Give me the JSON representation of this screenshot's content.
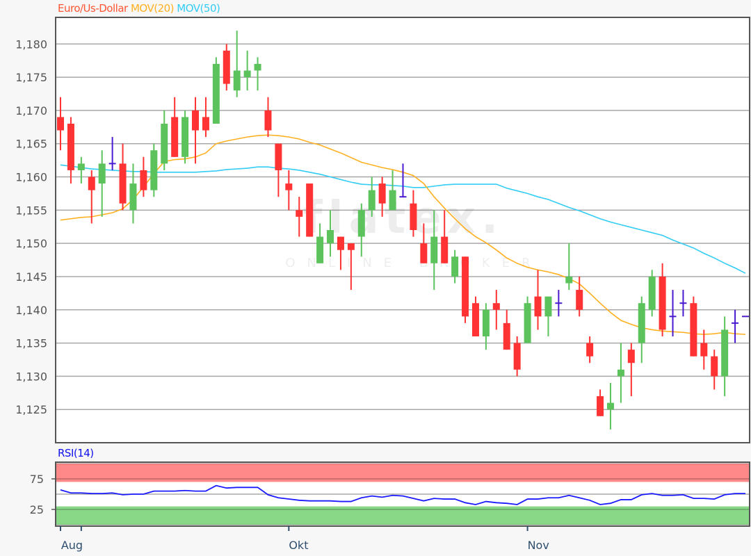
{
  "header": {
    "instrument": "Euro/Us-Dollar",
    "ma20_label": "MOV(20)",
    "ma50_label": "MOV(50)",
    "rsi_label": "RSI(14)",
    "watermark_main": "flatex.",
    "watermark_sub": "ONLINE BROKER"
  },
  "colors": {
    "instrument": "#ff5533",
    "up": "#5cc35c",
    "down": "#ff3333",
    "doji": "#4a1ad0",
    "ma20": "#ffb020",
    "ma50": "#33ccf5",
    "rsi": "#1a1aff",
    "rsi_overbought": "#ff8888",
    "rsi_oversold": "#88d888"
  },
  "chart_data": [
    {
      "type": "candlestick",
      "ylim": [
        1.12,
        1.184
      ],
      "yticks": [
        1.18,
        1.175,
        1.17,
        1.165,
        1.16,
        1.155,
        1.15,
        1.145,
        1.14,
        1.135,
        1.13,
        1.125
      ],
      "ytick_labels": [
        "1,180",
        "1,175",
        "1,170",
        "1,165",
        "1,160",
        "1,155",
        "1,150",
        "1,145",
        "1,140",
        "1,135",
        "1,130",
        "1,125"
      ],
      "grid": true,
      "xticks": [
        {
          "index": 0,
          "label": ""
        },
        {
          "index": 2,
          "label": "Aug"
        },
        {
          "index": 22,
          "label": "Okt"
        },
        {
          "index": 45,
          "label": "Nov"
        }
      ],
      "ohlc": [
        [
          1.169,
          1.172,
          1.164,
          1.167
        ],
        [
          1.168,
          1.169,
          1.159,
          1.161
        ],
        [
          1.161,
          1.163,
          1.159,
          1.162
        ],
        [
          1.16,
          1.161,
          1.153,
          1.158
        ],
        [
          1.159,
          1.164,
          1.154,
          1.162
        ],
        [
          1.162,
          1.166,
          1.161,
          1.162
        ],
        [
          1.162,
          1.165,
          1.155,
          1.156
        ],
        [
          1.155,
          1.162,
          1.153,
          1.159
        ],
        [
          1.161,
          1.163,
          1.157,
          1.158
        ],
        [
          1.158,
          1.165,
          1.157,
          1.164
        ],
        [
          1.162,
          1.17,
          1.161,
          1.168
        ],
        [
          1.169,
          1.172,
          1.163,
          1.163
        ],
        [
          1.163,
          1.17,
          1.162,
          1.169
        ],
        [
          1.17,
          1.172,
          1.162,
          1.167
        ],
        [
          1.169,
          1.172,
          1.166,
          1.167
        ],
        [
          1.168,
          1.178,
          1.168,
          1.177
        ],
        [
          1.179,
          1.18,
          1.173,
          1.174
        ],
        [
          1.173,
          1.182,
          1.172,
          1.176
        ],
        [
          1.175,
          1.179,
          1.173,
          1.176
        ],
        [
          1.176,
          1.178,
          1.173,
          1.177
        ],
        [
          1.17,
          1.172,
          1.166,
          1.167
        ],
        [
          1.165,
          1.165,
          1.157,
          1.161
        ],
        [
          1.159,
          1.161,
          1.155,
          1.158
        ],
        [
          1.155,
          1.157,
          1.151,
          1.154
        ],
        [
          1.159,
          1.159,
          1.151,
          1.151
        ],
        [
          1.147,
          1.153,
          1.147,
          1.151
        ],
        [
          1.15,
          1.155,
          1.148,
          1.152
        ],
        [
          1.151,
          1.151,
          1.146,
          1.149
        ],
        [
          1.15,
          1.15,
          1.143,
          1.149
        ],
        [
          1.151,
          1.156,
          1.148,
          1.155
        ],
        [
          1.155,
          1.16,
          1.154,
          1.158
        ],
        [
          1.159,
          1.16,
          1.154,
          1.156
        ],
        [
          1.155,
          1.161,
          1.155,
          1.158
        ],
        [
          1.157,
          1.162,
          1.157,
          1.157
        ],
        [
          1.156,
          1.158,
          1.151,
          1.152
        ],
        [
          1.15,
          1.153,
          1.147,
          1.147
        ],
        [
          1.147,
          1.155,
          1.143,
          1.151
        ],
        [
          1.151,
          1.155,
          1.147,
          1.147
        ],
        [
          1.145,
          1.149,
          1.144,
          1.148
        ],
        [
          1.148,
          1.148,
          1.138,
          1.139
        ],
        [
          1.141,
          1.142,
          1.136,
          1.136
        ],
        [
          1.136,
          1.141,
          1.134,
          1.14
        ],
        [
          1.141,
          1.143,
          1.137,
          1.14
        ],
        [
          1.138,
          1.14,
          1.134,
          1.134
        ],
        [
          1.135,
          1.136,
          1.13,
          1.131
        ],
        [
          1.135,
          1.142,
          1.135,
          1.141
        ],
        [
          1.142,
          1.146,
          1.137,
          1.139
        ],
        [
          1.139,
          1.142,
          1.136,
          1.142
        ],
        [
          1.141,
          1.143,
          1.139,
          1.141
        ],
        [
          1.144,
          1.15,
          1.143,
          1.145
        ],
        [
          1.143,
          1.145,
          1.139,
          1.14
        ],
        [
          1.135,
          1.136,
          1.132,
          1.133
        ],
        [
          1.127,
          1.128,
          1.124,
          1.124
        ],
        [
          1.125,
          1.129,
          1.122,
          1.126
        ],
        [
          1.13,
          1.135,
          1.126,
          1.131
        ],
        [
          1.134,
          1.135,
          1.127,
          1.132
        ],
        [
          1.135,
          1.142,
          1.132,
          1.141
        ],
        [
          1.14,
          1.146,
          1.139,
          1.145
        ],
        [
          1.145,
          1.147,
          1.136,
          1.137
        ],
        [
          1.139,
          1.143,
          1.136,
          1.139
        ],
        [
          1.141,
          1.143,
          1.139,
          1.141
        ],
        [
          1.141,
          1.142,
          1.133,
          1.133
        ],
        [
          1.135,
          1.137,
          1.131,
          1.133
        ],
        [
          1.133,
          1.134,
          1.128,
          1.13
        ],
        [
          1.13,
          1.139,
          1.127,
          1.137
        ],
        [
          1.138,
          1.14,
          1.135,
          1.138
        ],
        [
          1.139,
          1.139,
          1.139,
          1.139
        ]
      ],
      "ma20": [
        1.1535,
        1.1537,
        1.1539,
        1.154,
        1.1543,
        1.1546,
        1.1552,
        1.1566,
        1.1585,
        1.1605,
        1.1623,
        1.1626,
        1.1627,
        1.163,
        1.1636,
        1.165,
        1.1654,
        1.1657,
        1.166,
        1.1662,
        1.1663,
        1.1662,
        1.166,
        1.1657,
        1.1652,
        1.1648,
        1.1642,
        1.1636,
        1.1629,
        1.1622,
        1.1618,
        1.1614,
        1.1611,
        1.1607,
        1.1602,
        1.159,
        1.157,
        1.1553,
        1.1537,
        1.1522,
        1.151,
        1.1501,
        1.149,
        1.1478,
        1.147,
        1.1464,
        1.146,
        1.1457,
        1.1453,
        1.1447,
        1.1439,
        1.1425,
        1.141,
        1.1396,
        1.1384,
        1.1378,
        1.1373,
        1.137,
        1.1368,
        1.1367,
        1.1366,
        1.1364,
        1.1363,
        1.1364,
        1.1366,
        1.1364,
        1.1363
      ],
      "ma50": [
        1.1618,
        1.1616,
        1.1614,
        1.1612,
        1.1611,
        1.161,
        1.1609,
        1.1608,
        1.1608,
        1.1607,
        1.1607,
        1.1607,
        1.1607,
        1.1607,
        1.1608,
        1.1609,
        1.1611,
        1.1612,
        1.1613,
        1.1615,
        1.1615,
        1.1613,
        1.1612,
        1.161,
        1.1607,
        1.1604,
        1.16,
        1.1596,
        1.1592,
        1.1589,
        1.1588,
        1.1588,
        1.1587,
        1.1586,
        1.1584,
        1.1584,
        1.1586,
        1.1588,
        1.1589,
        1.1589,
        1.1589,
        1.1589,
        1.1589,
        1.1583,
        1.1579,
        1.1575,
        1.157,
        1.1566,
        1.156,
        1.1554,
        1.1549,
        1.1543,
        1.1537,
        1.1532,
        1.1528,
        1.1524,
        1.152,
        1.1516,
        1.1512,
        1.1505,
        1.1499,
        1.1493,
        1.1485,
        1.1478,
        1.147,
        1.1463,
        1.1455
      ]
    },
    {
      "type": "line",
      "name": "RSI(14)",
      "ylim": [
        0,
        100
      ],
      "yticks": [
        75,
        25
      ],
      "ytick_labels": [
        "75",
        "25"
      ],
      "overbought_zone": [
        70,
        100
      ],
      "oversold_zone": [
        0,
        30
      ],
      "midline": 50,
      "values": [
        57,
        52,
        52,
        51,
        51,
        52,
        49,
        50,
        50,
        55,
        55,
        55,
        56,
        55,
        55,
        64,
        60,
        61,
        61,
        61,
        49,
        44,
        42,
        40,
        39,
        39,
        39,
        38,
        38,
        44,
        47,
        45,
        48,
        47,
        43,
        39,
        43,
        42,
        42,
        36,
        33,
        38,
        36,
        35,
        33,
        42,
        42,
        44,
        44,
        48,
        44,
        40,
        33,
        35,
        41,
        41,
        49,
        51,
        48,
        48,
        49,
        43,
        43,
        42,
        49,
        51,
        51
      ]
    }
  ]
}
